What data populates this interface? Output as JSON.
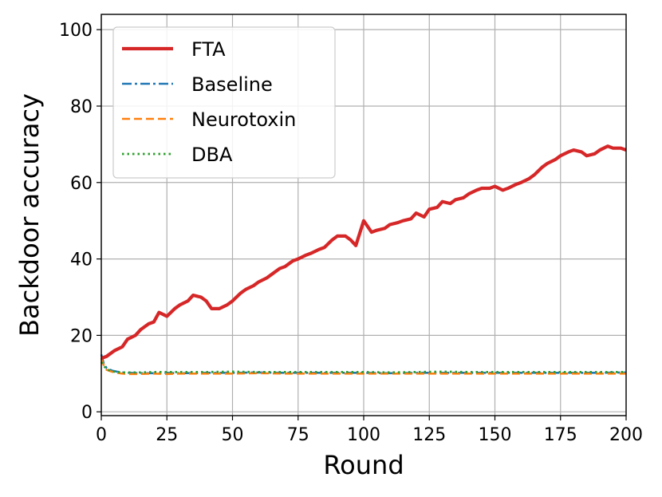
{
  "chart_data": {
    "type": "line",
    "title": "",
    "xlabel": "Round",
    "ylabel": "Backdoor accuracy",
    "xlim": [
      0,
      200
    ],
    "ylim": [
      -1,
      104
    ],
    "xticks": [
      0,
      25,
      50,
      75,
      100,
      125,
      150,
      175,
      200
    ],
    "yticks": [
      0,
      20,
      40,
      60,
      80,
      100
    ],
    "grid": true,
    "legend_position": "upper-left",
    "series": [
      {
        "name": "FTA",
        "color": "#d62728",
        "style": "solid",
        "x": [
          0,
          2,
          5,
          8,
          10,
          13,
          15,
          18,
          20,
          22,
          25,
          28,
          30,
          33,
          35,
          38,
          40,
          42,
          45,
          48,
          50,
          53,
          55,
          58,
          60,
          63,
          65,
          68,
          70,
          73,
          75,
          78,
          80,
          83,
          85,
          88,
          90,
          93,
          95,
          97,
          100,
          103,
          105,
          108,
          110,
          113,
          115,
          118,
          120,
          123,
          125,
          128,
          130,
          133,
          135,
          138,
          140,
          143,
          145,
          148,
          150,
          153,
          155,
          158,
          160,
          163,
          165,
          168,
          170,
          173,
          175,
          178,
          180,
          183,
          185,
          188,
          190,
          193,
          195,
          198,
          200
        ],
        "y": [
          14,
          14.5,
          16,
          17,
          19,
          20,
          21.5,
          23,
          23.5,
          26,
          25,
          27,
          28,
          29,
          30.5,
          30,
          29,
          27,
          27,
          28,
          29,
          31,
          32,
          33,
          34,
          35,
          36,
          37.5,
          38,
          39.5,
          40,
          41,
          41.5,
          42.5,
          43,
          45,
          46,
          46,
          45,
          43.5,
          50,
          47,
          47.5,
          48,
          49,
          49.5,
          50,
          50.5,
          52,
          51,
          53,
          53.5,
          55,
          54.5,
          55.5,
          56,
          57,
          58,
          58.5,
          58.5,
          59,
          58,
          58.5,
          59.5,
          60,
          61,
          62,
          64,
          65,
          66,
          67,
          68,
          68.5,
          68,
          67,
          67.5,
          68.5,
          69.5,
          69,
          69,
          68.5
        ]
      },
      {
        "name": "Baseline",
        "color": "#1f77b4",
        "style": "dashdot",
        "x": [
          0,
          1,
          2,
          4,
          6,
          8,
          10,
          15,
          20,
          25,
          30,
          40,
          50,
          60,
          70,
          80,
          90,
          100,
          110,
          120,
          130,
          140,
          150,
          160,
          170,
          180,
          190,
          200
        ],
        "y": [
          15,
          12.5,
          11.5,
          10.8,
          10.5,
          10.3,
          10.2,
          10.1,
          10.1,
          10.2,
          10.1,
          10.2,
          10.2,
          10.3,
          10.2,
          10.2,
          10.2,
          10.2,
          10.1,
          10.2,
          10.2,
          10.2,
          10.2,
          10.2,
          10.2,
          10.2,
          10.2,
          10.3
        ]
      },
      {
        "name": "Neurotoxin",
        "color": "#ff7f0e",
        "style": "dashed",
        "x": [
          0,
          1,
          2,
          4,
          6,
          8,
          10,
          15,
          20,
          25,
          30,
          40,
          50,
          60,
          70,
          80,
          90,
          100,
          110,
          120,
          130,
          140,
          150,
          160,
          170,
          180,
          190,
          200
        ],
        "y": [
          14,
          12,
          11,
          10.5,
          10.2,
          10.0,
          9.9,
          9.9,
          10.0,
          9.9,
          10.0,
          10.0,
          10.0,
          10.1,
          10.0,
          10.0,
          10.0,
          10.0,
          10.0,
          10.0,
          10.0,
          10.0,
          10.0,
          10.0,
          10.0,
          10.0,
          10.0,
          10.0
        ]
      },
      {
        "name": "DBA",
        "color": "#2ca02c",
        "style": "dotted",
        "x": [
          0,
          1,
          2,
          4,
          6,
          8,
          10,
          15,
          20,
          25,
          30,
          40,
          50,
          60,
          70,
          80,
          90,
          100,
          110,
          120,
          130,
          140,
          150,
          160,
          170,
          180,
          190,
          200
        ],
        "y": [
          13,
          12,
          11.2,
          10.6,
          10.4,
          10.3,
          10.3,
          10.3,
          10.4,
          10.4,
          10.4,
          10.4,
          10.5,
          10.4,
          10.4,
          10.4,
          10.4,
          10.4,
          10.3,
          10.4,
          10.5,
          10.4,
          10.4,
          10.4,
          10.4,
          10.4,
          10.4,
          10.4
        ]
      }
    ]
  }
}
